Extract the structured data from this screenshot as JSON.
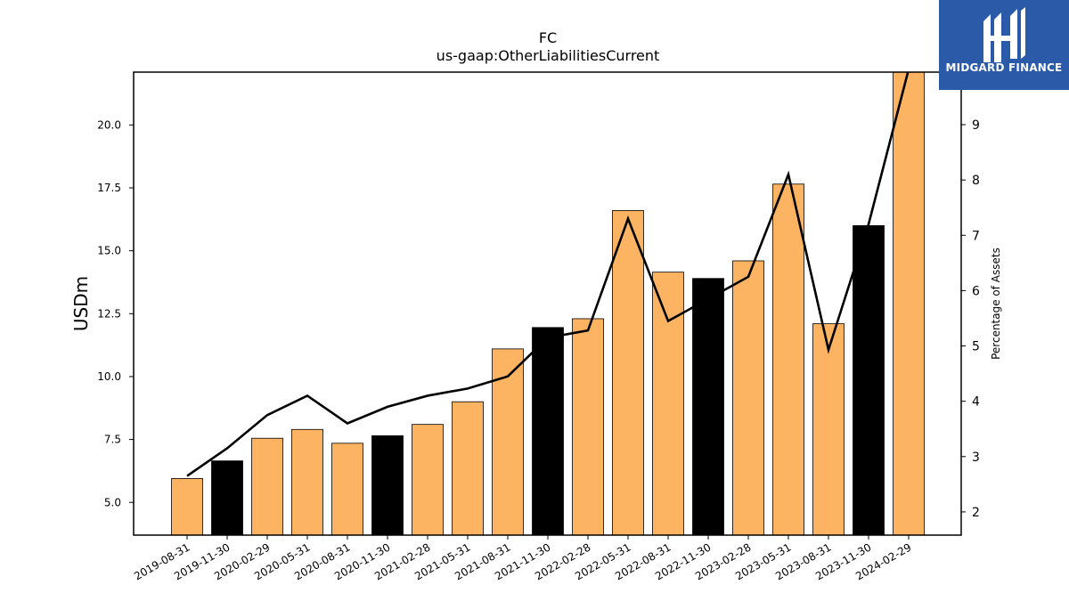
{
  "chart_data": {
    "type": "bar",
    "title": "FC",
    "subtitle": "us-gaap:OtherLiabilitiesCurrent",
    "ylabel": "USDm",
    "y2label": "Percentage of Assets",
    "ylim": [
      3.7,
      22.1
    ],
    "y2lim": [
      1.58,
      9.95
    ],
    "yticks": [
      "5.0",
      "7.5",
      "10.0",
      "12.5",
      "15.0",
      "17.5",
      "20.0"
    ],
    "y2ticks": [
      "2",
      "3",
      "4",
      "5",
      "6",
      "7",
      "8",
      "9"
    ],
    "categories": [
      "2019-08-31",
      "2019-11-30",
      "2020-02-29",
      "2020-05-31",
      "2020-08-31",
      "2020-11-30",
      "2021-02-28",
      "2021-05-31",
      "2021-08-31",
      "2021-11-30",
      "2022-02-28",
      "2022-05-31",
      "2022-08-31",
      "2022-11-30",
      "2023-02-28",
      "2023-05-31",
      "2023-08-31",
      "2023-11-30",
      "2024-02-29"
    ],
    "series": [
      {
        "type": "bar",
        "axis": "left",
        "values": [
          5.95,
          6.65,
          7.55,
          7.9,
          7.35,
          7.65,
          8.1,
          9.0,
          11.1,
          11.95,
          12.3,
          16.6,
          14.15,
          13.9,
          14.6,
          17.65,
          12.1,
          16.0,
          22.1
        ],
        "colors": [
          "#fdb462",
          "#000000",
          "#fdb462",
          "#fdb462",
          "#fdb462",
          "#000000",
          "#fdb462",
          "#fdb462",
          "#fdb462",
          "#000000",
          "#fdb462",
          "#fdb462",
          "#fdb462",
          "#000000",
          "#fdb462",
          "#fdb462",
          "#fdb462",
          "#000000",
          "#fdb462"
        ]
      },
      {
        "type": "line",
        "axis": "right",
        "color": "#000000",
        "values": [
          2.65,
          3.15,
          3.75,
          4.1,
          3.6,
          3.9,
          4.1,
          4.23,
          4.45,
          5.15,
          5.28,
          7.3,
          5.45,
          5.85,
          6.25,
          8.1,
          4.93,
          7.2,
          10.0
        ]
      }
    ]
  },
  "logo": {
    "text": "MIDGARD FINANCE",
    "color": "#2a5aa8"
  }
}
